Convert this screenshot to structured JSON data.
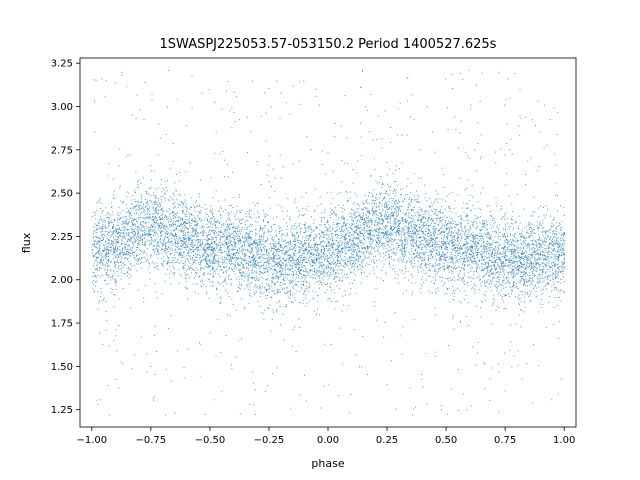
{
  "chart_data": {
    "type": "scatter",
    "title": "1SWASPJ225053.57-053150.2 Period 1400527.625s",
    "xlabel": "phase",
    "ylabel": "flux",
    "xlim": [
      -1.05,
      1.05
    ],
    "ylim": [
      1.15,
      3.28
    ],
    "xticks": [
      -1.0,
      -0.75,
      -0.5,
      -0.25,
      0.0,
      0.25,
      0.5,
      0.75,
      1.0
    ],
    "xtick_labels": [
      "−1.00",
      "−0.75",
      "−0.50",
      "−0.25",
      "0.00",
      "0.25",
      "0.50",
      "0.75",
      "1.00"
    ],
    "yticks": [
      1.25,
      1.5,
      1.75,
      2.0,
      2.25,
      2.5,
      2.75,
      3.0,
      3.25
    ],
    "ytick_labels": [
      "1.25",
      "1.50",
      "1.75",
      "2.00",
      "2.25",
      "2.50",
      "2.75",
      "3.00",
      "3.25"
    ],
    "grid": false,
    "marker_color": "#1f77b4",
    "series": [
      {
        "phase_range": [
          -1.0,
          1.0
        ],
        "approx_point_count": 30000,
        "mean_flux_profile": {
          "phase": [
            -1.0,
            -0.9,
            -0.8,
            -0.75,
            -0.7,
            -0.6,
            -0.5,
            -0.4,
            -0.3,
            -0.25,
            -0.2,
            -0.1,
            0.0,
            0.1,
            0.2,
            0.25,
            0.3,
            0.4,
            0.5,
            0.6,
            0.7,
            0.75,
            0.8,
            0.9,
            1.0
          ],
          "flux": [
            2.15,
            2.22,
            2.3,
            2.32,
            2.3,
            2.25,
            2.2,
            2.18,
            2.14,
            2.12,
            2.12,
            2.13,
            2.15,
            2.22,
            2.3,
            2.32,
            2.3,
            2.25,
            2.2,
            2.18,
            2.14,
            2.12,
            2.12,
            2.13,
            2.15
          ]
        },
        "core_spread": 0.12,
        "outlier_flux_range": [
          1.22,
          3.22
        ]
      }
    ]
  }
}
